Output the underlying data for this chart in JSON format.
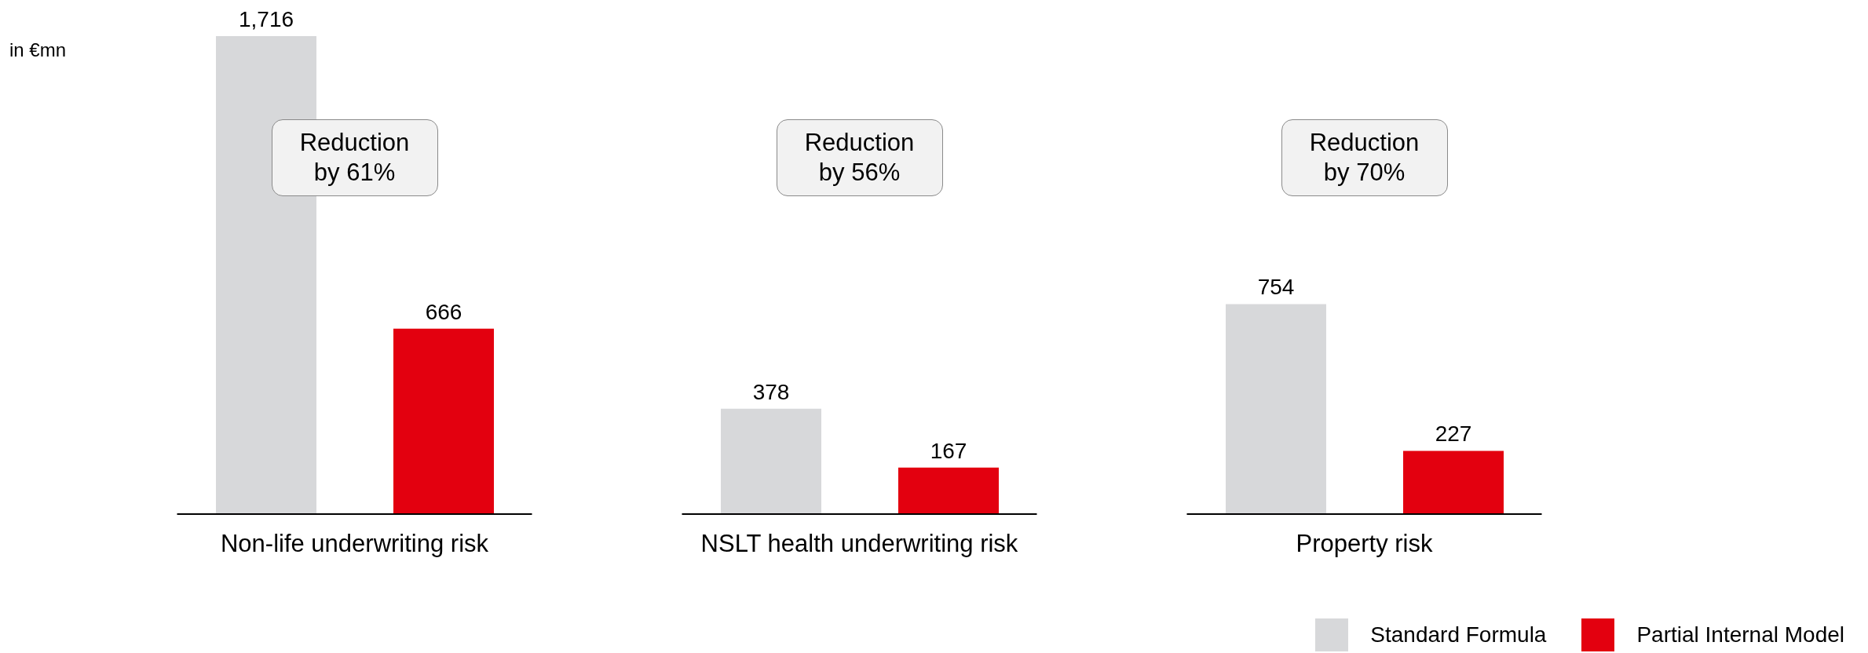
{
  "chart_data": {
    "type": "bar",
    "ylabel": "in €mn",
    "categories": [
      "Non-life underwriting risk",
      "NSLT health underwriting risk",
      "Property risk"
    ],
    "series": [
      {
        "name": "Standard Formula",
        "color": "#d7d8da",
        "values": [
          1716,
          378,
          754
        ],
        "value_labels": [
          "1,716",
          "378",
          "754"
        ]
      },
      {
        "name": "Partial Internal Model",
        "color": "#e3000f",
        "values": [
          666,
          167,
          227
        ],
        "value_labels": [
          "666",
          "167",
          "227"
        ]
      }
    ],
    "legend": "bottom right",
    "grid": false,
    "annotations": [
      "Reduction by 61%",
      "Reduction by 56%",
      "Reduction by 70%"
    ]
  }
}
